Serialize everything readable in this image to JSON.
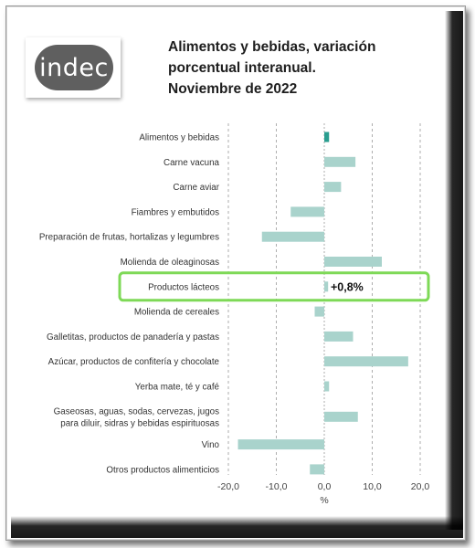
{
  "logo": {
    "text": "indec"
  },
  "title_lines": [
    "Alimentos y bebidas, variación",
    "porcentual interanual.",
    "Noviembre de 2022"
  ],
  "highlight": {
    "label": "+0,8%",
    "category_index": 6,
    "color": "#7ed957"
  },
  "colors": {
    "bar": "#a9d3cc",
    "highlight_bar": "#2a9d8f",
    "grid": "#9a9a9a",
    "axis": "#333333"
  },
  "chart_data": {
    "type": "bar",
    "orientation": "horizontal",
    "categories": [
      [
        "Alimentos y bebidas"
      ],
      [
        "Carne vacuna"
      ],
      [
        "Carne aviar"
      ],
      [
        "Fiambres y embutidos"
      ],
      [
        "Preparación de frutas, hortalizas y legumbres"
      ],
      [
        "Molienda de oleaginosas"
      ],
      [
        "Productos lácteos"
      ],
      [
        "Molienda de cereales"
      ],
      [
        "Galletitas, productos de panadería y pastas"
      ],
      [
        "Azúcar, productos de confitería y chocolate"
      ],
      [
        "Yerba mate, té y café"
      ],
      [
        "Gaseosas, aguas, sodas, cervezas, jugos",
        "para diluir, sidras y bebidas espirituosas"
      ],
      [
        "Vino"
      ],
      [
        "Otros productos alimenticios"
      ]
    ],
    "values": [
      1.0,
      6.5,
      3.5,
      -7.0,
      -13.0,
      12.0,
      0.8,
      -2.0,
      6.0,
      17.5,
      1.0,
      7.0,
      -18.0,
      -3.0
    ],
    "xlabel": "%",
    "xlim": [
      -22,
      22
    ],
    "xticks": [
      -20,
      -10,
      0,
      10,
      20
    ],
    "xtick_labels": [
      "-20,0",
      "-10,0",
      "0,0",
      "10,0",
      "20,0"
    ],
    "grid": "vertical dashed"
  }
}
